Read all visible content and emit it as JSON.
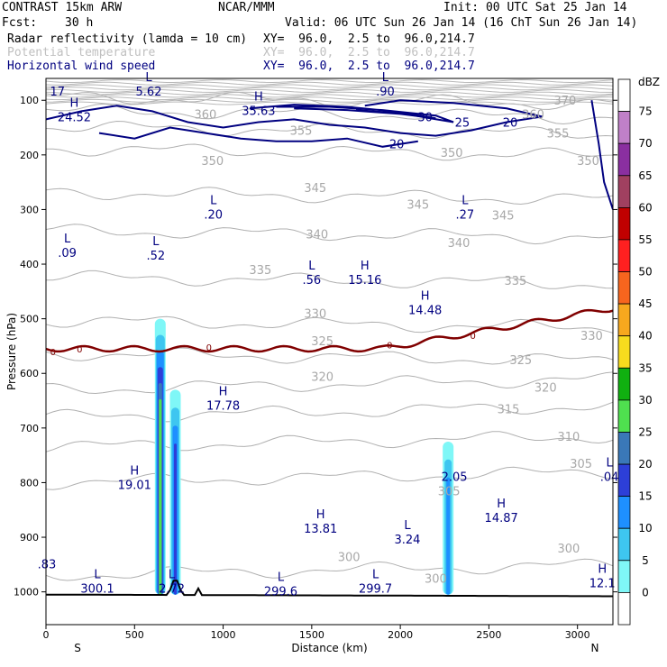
{
  "header": {
    "title": "CONTRAST 15km ARW",
    "source": "NCAR/MMM",
    "init": "Init: 00 UTC Sat 25 Jan 14",
    "fcst_label": "Fcst:",
    "fcst_value": "30 h",
    "valid": "Valid: 06 UTC Sun 26 Jan 14 (16 ChT Sun 26 Jan 14)"
  },
  "legend": [
    {
      "name": "Radar reflectivity (lamda = 10 cm)",
      "xy": "XY=  96.0,  2.5 to  96.0,214.7",
      "color": "#000000"
    },
    {
      "name": "Potential temperature",
      "xy": "XY=  96.0,  2.5 to  96.0,214.7",
      "color": "#c0c0c0"
    },
    {
      "name": "Horizontal wind speed",
      "xy": "XY=  96.0,  2.5 to  96.0,214.7",
      "color": "#000080"
    }
  ],
  "colorbar": {
    "unit": "dBZ",
    "levels": [
      "0",
      "5",
      "10",
      "15",
      "20",
      "25",
      "30",
      "35",
      "40",
      "45",
      "50",
      "55",
      "60",
      "65",
      "70",
      "75"
    ],
    "colors": [
      "#ffffff",
      "#7ff7f7",
      "#3ec6f0",
      "#1e90ff",
      "#2d3fd8",
      "#3a78b8",
      "#4fe04f",
      "#10b010",
      "#f7dc1e",
      "#f7a81e",
      "#f7651e",
      "#ff2020",
      "#c00000",
      "#a04060",
      "#8a2fa0",
      "#c080c8"
    ]
  },
  "chart_data": {
    "type": "cross-section",
    "xlabel": "Distance (km)",
    "ylabel": "Pressure (hPa)",
    "xlim": [
      0,
      3200
    ],
    "ylim": [
      1060,
      60
    ],
    "x_ticks": [
      0,
      500,
      1000,
      1500,
      2000,
      2500,
      3000
    ],
    "y_ticks": [
      100,
      200,
      300,
      400,
      500,
      600,
      700,
      800,
      900,
      1000
    ],
    "x_end_labels": {
      "left": "S",
      "right": "N"
    },
    "theta_isentropes": [
      {
        "label": "300",
        "p_mid": 960
      },
      {
        "label": "305",
        "p_mid": 790
      },
      {
        "label": "310",
        "p_mid": 725
      },
      {
        "label": "315",
        "p_mid": 670
      },
      {
        "label": "320",
        "p_mid": 620
      },
      {
        "label": "325",
        "p_mid": 570
      },
      {
        "label": "330",
        "p_mid": 510
      },
      {
        "label": "335",
        "p_mid": 430
      },
      {
        "label": "340",
        "p_mid": 345
      },
      {
        "label": "345",
        "p_mid": 275
      },
      {
        "label": "350",
        "p_mid": 195
      },
      {
        "label": "355",
        "p_mid": 155
      },
      {
        "label": "360",
        "p_mid": 125
      },
      {
        "label": "370",
        "p_mid": 100
      }
    ],
    "theta_labels": [
      {
        "x": 1710,
        "p": 935,
        "text": "300"
      },
      {
        "x": 2200,
        "p": 975,
        "text": "300"
      },
      {
        "x": 2950,
        "p": 920,
        "text": "300"
      },
      {
        "x": 2275,
        "p": 815,
        "text": "305"
      },
      {
        "x": 3020,
        "p": 765,
        "text": "305"
      },
      {
        "x": 2950,
        "p": 715,
        "text": "310"
      },
      {
        "x": 2610,
        "p": 665,
        "text": "315"
      },
      {
        "x": 2820,
        "p": 625,
        "text": "320"
      },
      {
        "x": 1560,
        "p": 605,
        "text": "320"
      },
      {
        "x": 2680,
        "p": 575,
        "text": "325"
      },
      {
        "x": 1560,
        "p": 540,
        "text": "325"
      },
      {
        "x": 1520,
        "p": 490,
        "text": "330"
      },
      {
        "x": 3080,
        "p": 530,
        "text": "330"
      },
      {
        "x": 2650,
        "p": 430,
        "text": "335"
      },
      {
        "x": 1210,
        "p": 410,
        "text": "335"
      },
      {
        "x": 1530,
        "p": 345,
        "text": "340"
      },
      {
        "x": 2330,
        "p": 360,
        "text": "340"
      },
      {
        "x": 2100,
        "p": 290,
        "text": "345"
      },
      {
        "x": 2580,
        "p": 310,
        "text": "345"
      },
      {
        "x": 1520,
        "p": 260,
        "text": "345"
      },
      {
        "x": 940,
        "p": 210,
        "text": "350"
      },
      {
        "x": 2290,
        "p": 195,
        "text": "350"
      },
      {
        "x": 3060,
        "p": 210,
        "text": "350"
      },
      {
        "x": 1440,
        "p": 155,
        "text": "355"
      },
      {
        "x": 2890,
        "p": 160,
        "text": "355"
      },
      {
        "x": 900,
        "p": 125,
        "text": "360"
      },
      {
        "x": 2750,
        "p": 125,
        "text": "360"
      },
      {
        "x": 2930,
        "p": 100,
        "text": "370"
      }
    ],
    "wind_labels": [
      {
        "x": 2140,
        "p": 130,
        "text": "30"
      },
      {
        "x": 2350,
        "p": 140,
        "text": "25"
      },
      {
        "x": 2620,
        "p": 140,
        "text": "20"
      },
      {
        "x": 1980,
        "p": 180,
        "text": "20"
      }
    ],
    "freezing_level": {
      "label": "0",
      "p": 555
    },
    "extrema": [
      {
        "x": 65,
        "p": 75,
        "kind": "",
        "value": "17"
      },
      {
        "x": 120,
        "p": 370,
        "kind": "L",
        "value": ".09"
      },
      {
        "x": 160,
        "p": 122,
        "kind": "H",
        "value": "24.52"
      },
      {
        "x": 5,
        "p": 940,
        "kind": "",
        "value": ".83"
      },
      {
        "x": 290,
        "p": 985,
        "kind": "L",
        "value": "300.1"
      },
      {
        "x": 500,
        "p": 795,
        "kind": "H",
        "value": "19.01"
      },
      {
        "x": 580,
        "p": 75,
        "kind": "L",
        "value": "5.62"
      },
      {
        "x": 620,
        "p": 375,
        "kind": "L",
        "value": ".52"
      },
      {
        "x": 710,
        "p": 985,
        "kind": "L",
        "value": "2.72"
      },
      {
        "x": 1000,
        "p": 650,
        "kind": "H",
        "value": "17.78"
      },
      {
        "x": 945,
        "p": 300,
        "kind": "L",
        "value": ".20"
      },
      {
        "x": 1200,
        "p": 110,
        "kind": "H",
        "value": "35.63"
      },
      {
        "x": 1325,
        "p": 990,
        "kind": "L",
        "value": "299.6"
      },
      {
        "x": 1500,
        "p": 420,
        "kind": "L",
        "value": ".56"
      },
      {
        "x": 1550,
        "p": 875,
        "kind": "H",
        "value": "13.81"
      },
      {
        "x": 1800,
        "p": 420,
        "kind": "H",
        "value": "15.16"
      },
      {
        "x": 1860,
        "p": 985,
        "kind": "L",
        "value": "299.7"
      },
      {
        "x": 1915,
        "p": 75,
        "kind": "L",
        "value": ".90"
      },
      {
        "x": 2040,
        "p": 895,
        "kind": "L",
        "value": "3.24"
      },
      {
        "x": 2140,
        "p": 475,
        "kind": "H",
        "value": "14.48"
      },
      {
        "x": 2305,
        "p": 780,
        "kind": "",
        "value": "2.05"
      },
      {
        "x": 2365,
        "p": 300,
        "kind": "L",
        "value": ".27"
      },
      {
        "x": 2570,
        "p": 855,
        "kind": "H",
        "value": "14.87"
      },
      {
        "x": 3140,
        "p": 975,
        "kind": "H",
        "value": "12.1"
      },
      {
        "x": 3180,
        "p": 780,
        "kind": "L",
        "value": ".04"
      }
    ],
    "reflectivity_cells": [
      {
        "x": 645,
        "p_top": 500,
        "p_base": 1005,
        "max_dbz": 30
      },
      {
        "x": 730,
        "p_top": 630,
        "p_base": 1005,
        "max_dbz": 20
      },
      {
        "x": 2270,
        "p_top": 725,
        "p_base": 1005,
        "max_dbz": 15
      }
    ]
  }
}
